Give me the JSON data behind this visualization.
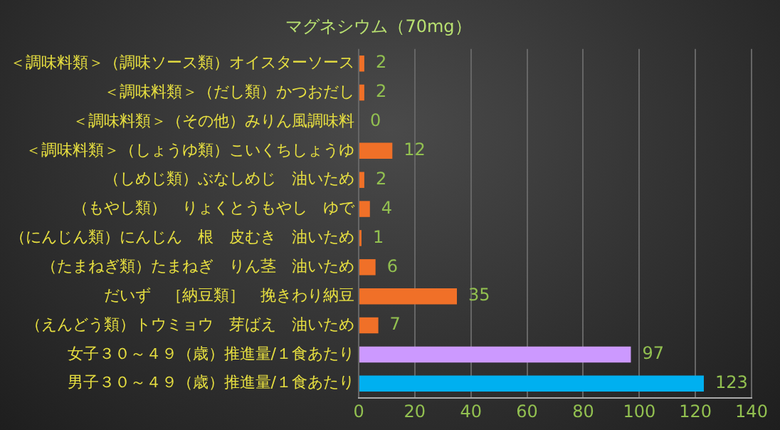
{
  "chart_data": {
    "type": "bar",
    "orientation": "horizontal",
    "title": "マグネシウム（70mg）",
    "categories": [
      "＜調味料類＞（調味ソース類）オイスターソース",
      "＜調味料類＞（だし類）かつおだし",
      "＜調味料類＞（その他）みりん風調味料",
      "＜調味料類＞（しょうゆ類）こいくちしょうゆ",
      "（しめじ類）ぶなしめじ　油いため",
      "（もやし類）　りょくとうもやし　ゆで",
      "（にんじん類）にんじん　根　皮むき　油いため",
      "（たまねぎ類）たまねぎ　りん茎　油いため",
      "だいず　［納豆類］　挽きわり納豆",
      "（えんどう類）トウミョウ　芽ばえ　油いため",
      "女子３０～４９（歳）推進量/１食あたり",
      "男子３０～４９（歳）推進量/１食あたり"
    ],
    "values": [
      2,
      2,
      0,
      12,
      2,
      4,
      1,
      6,
      35,
      7,
      97,
      123
    ],
    "colors": [
      "#f07028",
      "#f07028",
      "#f07028",
      "#f07028",
      "#f07028",
      "#f07028",
      "#f07028",
      "#f07028",
      "#f07028",
      "#f07028",
      "#cc99ff",
      "#00b0f0"
    ],
    "data_labels": true,
    "xlim": [
      0,
      140
    ],
    "xticks": [
      0,
      20,
      40,
      60,
      80,
      100,
      120,
      140
    ],
    "grid": "x",
    "legend": false
  }
}
